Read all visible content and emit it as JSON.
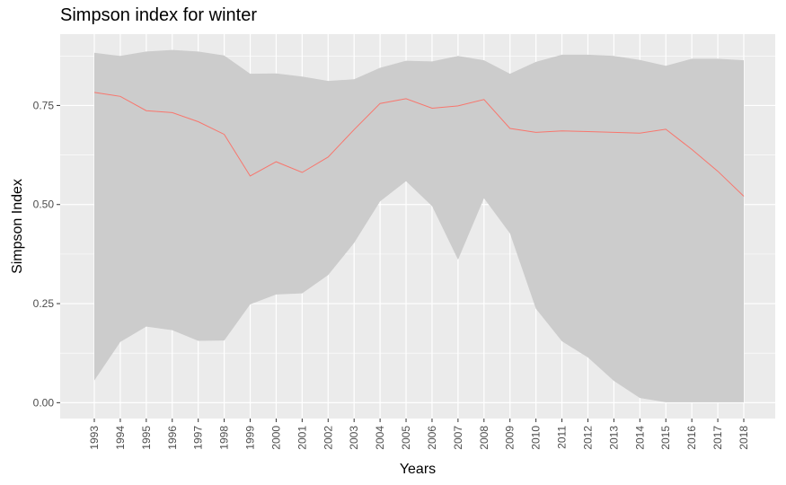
{
  "chart_data": {
    "type": "line",
    "title": "Simpson index for winter",
    "xlabel": "Years",
    "ylabel": "Simpson Index",
    "x": [
      "1993",
      "1994",
      "1995",
      "1996",
      "1997",
      "1998",
      "1999",
      "2000",
      "2001",
      "2002",
      "2003",
      "2004",
      "2005",
      "2006",
      "2007",
      "2008",
      "2009",
      "2010",
      "2011",
      "2012",
      "2013",
      "2014",
      "2015",
      "2016",
      "2017",
      "2018"
    ],
    "ylim": [
      -0.04,
      0.93
    ],
    "yticks": [
      0.0,
      0.25,
      0.5,
      0.75
    ],
    "ytick_labels": [
      "0.00",
      "0.25",
      "0.50",
      "0.75"
    ],
    "grid": true,
    "series": [
      {
        "values": [
          0.783,
          0.773,
          0.737,
          0.732,
          0.709,
          0.677,
          0.572,
          0.608,
          0.581,
          0.62,
          0.689,
          0.755,
          0.767,
          0.743,
          0.749,
          0.765,
          0.692,
          0.682,
          0.686,
          0.684,
          0.682,
          0.68,
          0.69,
          0.639,
          0.584,
          0.521
        ],
        "color": "#f8766d"
      }
    ],
    "ribbon": {
      "lower": [
        0.056,
        0.153,
        0.192,
        0.183,
        0.156,
        0.157,
        0.248,
        0.273,
        0.276,
        0.322,
        0.403,
        0.508,
        0.559,
        0.496,
        0.361,
        0.516,
        0.427,
        0.237,
        0.155,
        0.114,
        0.055,
        0.012,
        0.001,
        0.001,
        0.001,
        0.001
      ],
      "upper": [
        0.883,
        0.875,
        0.886,
        0.89,
        0.886,
        0.876,
        0.83,
        0.831,
        0.823,
        0.812,
        0.816,
        0.845,
        0.863,
        0.861,
        0.875,
        0.864,
        0.83,
        0.86,
        0.878,
        0.878,
        0.875,
        0.865,
        0.85,
        0.868,
        0.868,
        0.864
      ],
      "color": "#cccccc"
    },
    "colors": {
      "panel": "#ebebeb",
      "grid": "#ffffff",
      "line": "#f8766d",
      "ribbon": "#cccccc"
    }
  }
}
